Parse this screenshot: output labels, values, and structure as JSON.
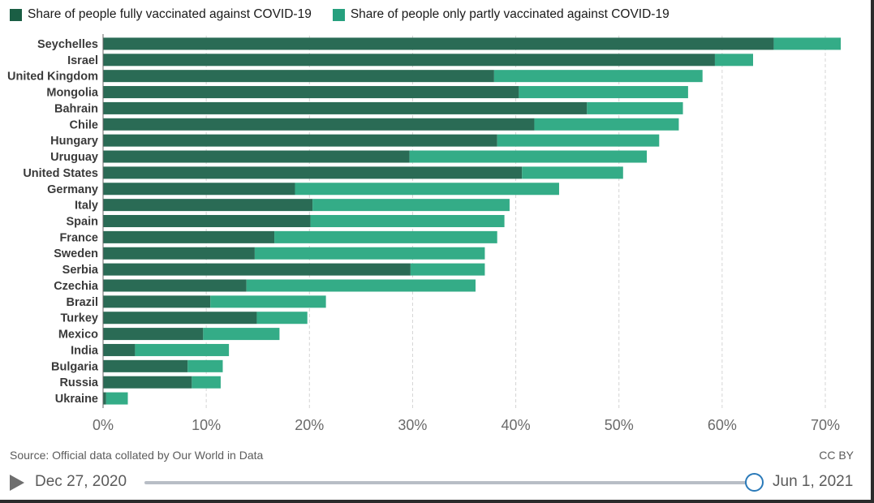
{
  "legend": {
    "fully": {
      "label": "Share of people fully vaccinated against COVID-19",
      "color": "#1a5e44"
    },
    "partly": {
      "label": "Share of people only partly vaccinated against COVID-19",
      "color": "#26a07e"
    }
  },
  "chart_data": {
    "type": "bar",
    "orientation": "horizontal",
    "stacked": true,
    "categories": [
      "Seychelles",
      "Israel",
      "United Kingdom",
      "Mongolia",
      "Bahrain",
      "Chile",
      "Hungary",
      "Uruguay",
      "United States",
      "Germany",
      "Italy",
      "Spain",
      "France",
      "Sweden",
      "Serbia",
      "Czechia",
      "Brazil",
      "Turkey",
      "Mexico",
      "India",
      "Bulgaria",
      "Russia",
      "Ukraine"
    ],
    "series": [
      {
        "name": "Share of people fully vaccinated against COVID-19",
        "color": "#2a6b55",
        "values": [
          65.0,
          59.3,
          37.9,
          40.3,
          46.9,
          41.8,
          38.2,
          29.7,
          40.6,
          18.6,
          20.3,
          20.1,
          16.6,
          14.7,
          29.8,
          13.9,
          10.4,
          14.9,
          9.7,
          3.1,
          8.2,
          8.6,
          0.3
        ]
      },
      {
        "name": "Share of people only partly vaccinated against COVID-19",
        "color": "#34ac87",
        "values": [
          6.5,
          3.7,
          20.2,
          16.4,
          9.3,
          14.0,
          15.7,
          23.0,
          9.8,
          25.6,
          19.1,
          18.8,
          21.6,
          22.3,
          7.2,
          22.2,
          11.2,
          4.9,
          7.4,
          9.1,
          3.4,
          2.8,
          2.1
        ]
      }
    ],
    "xlim": [
      0,
      70
    ],
    "xticks": [
      "0%",
      "10%",
      "20%",
      "30%",
      "40%",
      "50%",
      "60%",
      "70%"
    ],
    "xtick_values": [
      0,
      10,
      20,
      30,
      40,
      50,
      60,
      70
    ],
    "grid": true
  },
  "footer": {
    "source": "Source: Official data collated by Our World in Data",
    "license": "CC BY"
  },
  "timeline": {
    "start_date": "Dec 27, 2020",
    "end_date": "Jun 1, 2021",
    "position": 1.0
  }
}
